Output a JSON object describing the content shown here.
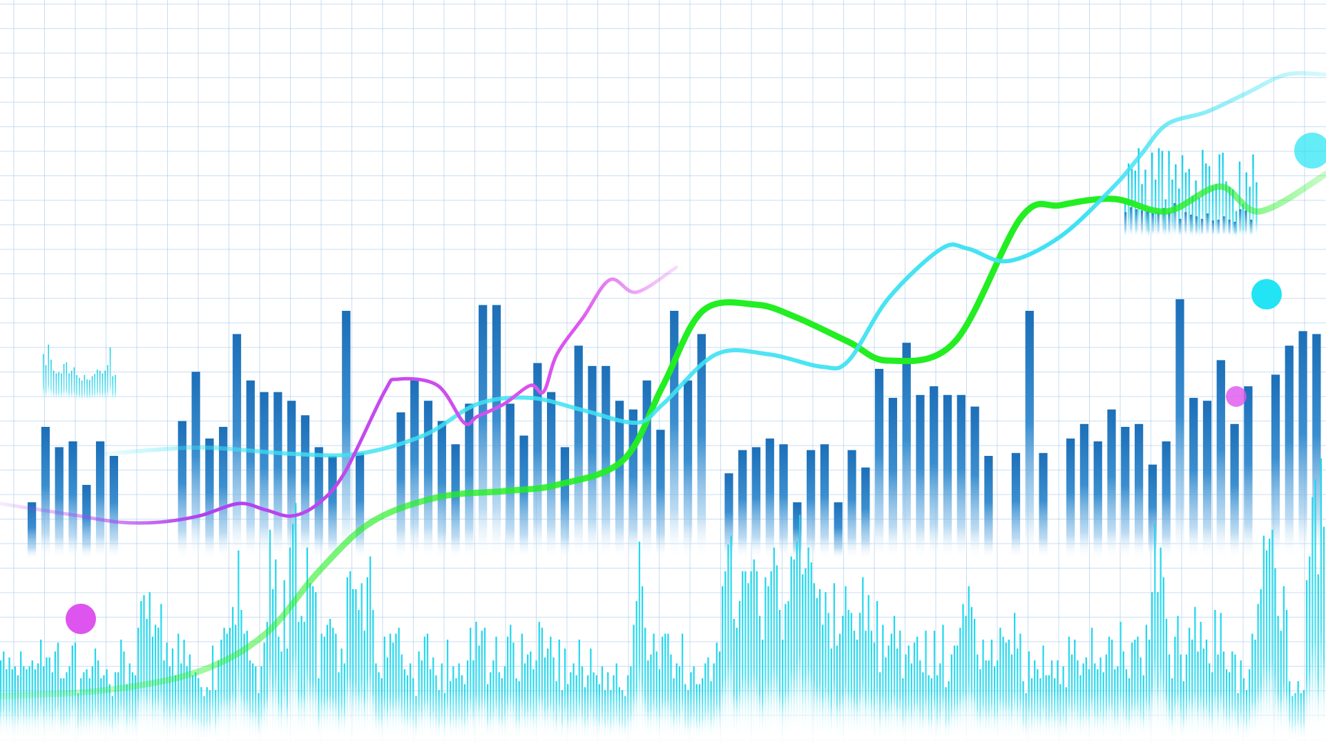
{
  "palette": {
    "background": "#ffffff",
    "grid": "#9cc3e6",
    "bar_dark_blue": "#1c6fb8",
    "bar_cyan": "#1fd6ec",
    "line_green": "#22ee22",
    "line_cyan": "#3fe2f2",
    "line_purple": "#b040ee",
    "dot_purple": "#dd55ee",
    "dot_cyan": "#22e4f4"
  },
  "chart_data": [
    {
      "type": "bar",
      "title": "",
      "xlabel": "",
      "ylabel": "",
      "grid": true,
      "legend": "none",
      "ylim": [
        0,
        100
      ],
      "series": [
        {
          "values": [
            14,
            40,
            33,
            35,
            20,
            35,
            30,
            0,
            0,
            0,
            0,
            42,
            59,
            36,
            40,
            72,
            56,
            52,
            52,
            49,
            44,
            33,
            30,
            80,
            31,
            0,
            0,
            45,
            56,
            49,
            42,
            34,
            48,
            82,
            82,
            48,
            37,
            62,
            52,
            33,
            68,
            61,
            61,
            49,
            46,
            56,
            39,
            80,
            56,
            72,
            0,
            24,
            32,
            33,
            36,
            34,
            14,
            32,
            34,
            14,
            32,
            26,
            60,
            50,
            69,
            51,
            54,
            51,
            51,
            47,
            30,
            0,
            31,
            80,
            31,
            0,
            36,
            41,
            35,
            46,
            40,
            41,
            27,
            35,
            84,
            50,
            49,
            63,
            41,
            54,
            0,
            58,
            68,
            73,
            72
          ]
        },
        {
          "values": [
            23,
            26,
            20,
            24,
            20,
            21,
            18,
            26,
            21,
            20,
            21,
            23,
            20,
            22,
            30,
            21,
            24,
            24,
            19,
            26,
            29,
            17,
            17,
            19,
            21,
            28,
            29,
            12,
            17,
            19,
            20,
            17,
            21,
            27,
            23,
            17,
            18,
            20,
            15,
            11,
            19,
            19,
            30,
            26,
            15,
            22,
            19,
            18,
            34,
            43,
            45,
            37,
            46,
            31,
            35,
            34,
            42,
            23,
            29,
            21,
            27,
            18,
            32,
            22,
            30,
            21,
            25,
            18,
            19,
            17,
            14,
            11,
            14,
            13,
            28,
            13,
            23,
            30,
            34,
            32,
            34,
            41,
            35,
            60,
            40,
            32,
            33,
            23,
            22,
            21,
            12,
            21,
            29,
            36,
            67,
            47,
            57,
            31,
            26,
            50,
            27,
            61,
            69,
            76,
            36,
            38,
            36,
            61,
            49,
            48,
            46,
            17,
            32,
            31,
            35,
            37,
            34,
            32,
            19,
            27,
            22,
            51,
            53,
            47,
            47,
            40,
            49,
            33,
            51,
            58,
            40,
            22,
            19,
            17,
            31,
            24,
            32,
            29,
            32,
            34,
            25,
            20,
            18,
            22,
            17,
            11,
            26,
            23,
            31,
            32,
            20,
            24,
            18,
            13,
            22,
            12,
            30,
            16,
            21,
            17,
            22,
            18,
            15,
            23,
            34,
            23,
            36,
            28,
            33,
            34,
            15,
            19,
            23,
            31,
            19,
            17,
            21,
            31,
            35,
            29,
            17,
            16,
            32,
            22,
            25,
            26,
            20,
            23,
            36,
            34,
            24,
            27,
            31,
            24,
            16,
            30,
            13,
            27,
            15,
            19,
            22,
            18,
            30,
            21,
            14,
            18,
            27,
            19,
            18,
            15,
            21,
            13,
            19,
            13,
            18,
            22,
            14,
            13,
            11,
            18,
            21,
            35,
            43,
            63,
            48,
            34,
            23,
            25,
            32,
            26,
            20,
            31,
            32,
            32,
            25,
            17,
            22,
            21,
            32,
            15,
            13,
            19,
            21,
            15,
            15,
            17,
            22,
            24,
            16,
            22,
            29,
            26,
            48,
            53,
            62,
            65,
            37,
            34,
            43,
            53,
            53,
            49,
            53,
            57,
            53,
            38,
            30,
            51,
            48,
            53,
            61,
            55,
            40,
            30,
            42,
            43,
            58,
            57,
            63,
            72,
            52,
            54,
            61,
            56,
            49,
            44,
            47,
            35,
            46,
            39,
            27,
            49,
            28,
            32,
            38,
            48,
            40,
            39,
            33,
            30,
            39,
            51,
            33,
            45,
            33,
            29,
            43,
            19,
            35,
            24,
            28,
            32,
            38,
            27,
            33,
            17,
            25,
            28,
            22,
            29,
            31,
            23,
            19,
            33,
            18,
            17,
            33,
            18,
            22,
            35,
            14,
            16,
            25,
            28,
            28,
            34,
            42,
            38,
            48,
            41,
            37,
            25,
            20,
            30,
            23,
            23,
            30,
            21,
            23,
            34,
            31,
            29,
            30,
            25,
            39,
            27,
            32,
            16,
            12,
            26,
            17,
            23,
            20,
            17,
            28,
            18,
            18,
            23,
            17,
            23,
            15,
            21,
            14,
            31,
            25,
            30,
            23,
            18,
            22,
            24,
            20,
            34,
            22,
            20,
            24,
            19,
            25,
            31,
            30,
            20,
            21,
            36,
            26,
            20,
            17,
            29,
            30,
            31,
            24,
            18,
            35,
            30,
            46,
            69,
            46,
            61,
            51,
            37,
            25,
            17,
            31,
            38,
            25,
            16,
            25,
            34,
            30,
            41,
            26,
            36,
            27,
            30,
            22,
            19,
            40,
            25,
            39,
            26,
            20,
            19,
            26,
            25,
            12,
            23,
            17,
            13,
            20,
            32,
            30,
            42,
            47,
            65,
            60,
            64,
            67,
            54,
            38,
            33,
            48,
            40,
            16,
            11,
            12,
            16,
            12,
            13,
            50,
            58,
            78,
            84,
            52,
            91,
            68
          ]
        },
        {
          "values": [
            38,
            78,
            72,
            70,
            95,
            55,
            71,
            28,
            90,
            60,
            95,
            92,
            38,
            92,
            60,
            77,
            50,
            87,
            68,
            72,
            42,
            59,
            40,
            93,
            78,
            75,
            53,
            55,
            88,
            90,
            58,
            52,
            49,
            25,
            80,
            33,
            68,
            52,
            88,
            57
          ]
        },
        {
          "values": [
            78,
            58,
            95,
            68,
            48,
            43,
            45,
            43,
            60,
            63,
            43,
            48,
            54,
            40,
            35,
            30,
            40,
            32,
            31,
            38,
            42,
            50,
            48,
            43,
            48,
            58,
            90,
            38,
            40
          ]
        },
        {
          "values": [
            48,
            60,
            55,
            52,
            50,
            45,
            48,
            58,
            48,
            70,
            32,
            48,
            42,
            38,
            32,
            45,
            28,
            30,
            38,
            30,
            25,
            55,
            52,
            30
          ]
        }
      ]
    },
    {
      "type": "line",
      "title": "",
      "xlabel": "",
      "ylabel": "",
      "series": [
        {
          "x": [
            0,
            8,
            15,
            20,
            24,
            28,
            33,
            38,
            42,
            47,
            50,
            53,
            57,
            60,
            64,
            67,
            72,
            77,
            80,
            84,
            88,
            92,
            95,
            100
          ],
          "values": [
            8,
            9,
            12,
            18,
            28,
            36,
            40,
            41,
            42,
            46,
            58,
            70,
            71,
            69,
            65,
            62,
            65,
            85,
            87,
            88,
            86,
            90,
            86,
            92
          ]
        },
        {
          "x": [
            8,
            15,
            22,
            27,
            32,
            36,
            40,
            44,
            48,
            50,
            54,
            58,
            62,
            64,
            67,
            71,
            73,
            76,
            80,
            84,
            86,
            88,
            91,
            94,
            97,
            100
          ],
          "values": [
            47,
            48,
            47,
            47,
            50,
            55,
            56,
            54,
            52,
            55,
            63,
            63,
            61,
            62,
            72,
            80,
            80,
            78,
            82,
            90,
            95,
            100,
            102,
            105,
            108,
            108
          ]
        },
        {
          "x": [
            0,
            3,
            6,
            9,
            12,
            15,
            18,
            20,
            22,
            24,
            26,
            29,
            30,
            33,
            35,
            36,
            38,
            40,
            41,
            42,
            44,
            46,
            48,
            51
          ],
          "values": [
            39,
            38,
            37,
            36,
            36,
            37,
            39,
            38,
            37,
            39,
            44,
            57,
            59,
            58,
            52,
            53,
            55,
            58,
            57,
            63,
            69,
            75,
            73,
            77
          ]
        }
      ]
    }
  ]
}
